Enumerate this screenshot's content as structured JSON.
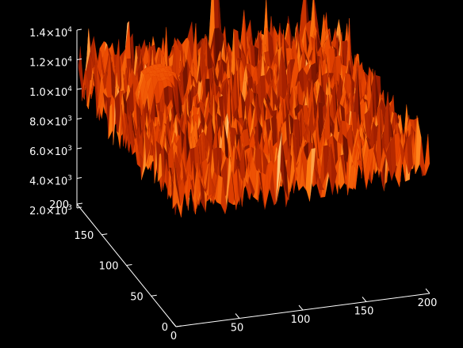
{
  "chart_data": {
    "type": "surface",
    "title": "",
    "xlabel": "",
    "ylabel": "",
    "zlabel": "",
    "x_range": [
      0,
      200
    ],
    "y_range": [
      0,
      200
    ],
    "z_range": [
      2000,
      14000
    ],
    "x_ticks": [
      "0",
      "50",
      "100",
      "150",
      "200"
    ],
    "y_ticks": [
      "0",
      "50",
      "100",
      "150",
      "200"
    ],
    "z_ticks": [
      {
        "mantissa": "2.0",
        "times": "×",
        "base": "10",
        "exponent": "3"
      },
      {
        "mantissa": "4.0",
        "times": "×",
        "base": "10",
        "exponent": "3"
      },
      {
        "mantissa": "6.0",
        "times": "×",
        "base": "10",
        "exponent": "3"
      },
      {
        "mantissa": "8.0",
        "times": "×",
        "base": "10",
        "exponent": "3"
      },
      {
        "mantissa": "1.0",
        "times": "×",
        "base": "10",
        "exponent": "4"
      },
      {
        "mantissa": "1.2",
        "times": "×",
        "base": "10",
        "exponent": "4"
      },
      {
        "mantissa": "1.4",
        "times": "×",
        "base": "10",
        "exponent": "4"
      }
    ],
    "noise_floor": {
      "mean": 6500,
      "amplitude": 2000
    },
    "features": [
      {
        "type": "plateau",
        "x": 35,
        "y": 125,
        "height": 9200,
        "radius": 18
      },
      {
        "type": "spike",
        "x": 105,
        "y": 190,
        "height": 13500,
        "radius": 4
      },
      {
        "type": "spike",
        "x": 120,
        "y": 170,
        "height": 10500,
        "radius": 4
      },
      {
        "type": "spike",
        "x": 155,
        "y": 185,
        "height": 12000,
        "radius": 2.5
      },
      {
        "type": "spike",
        "x": 140,
        "y": 175,
        "height": 11000,
        "radius": 2.5
      },
      {
        "type": "spike",
        "x": 90,
        "y": 175,
        "height": 11000,
        "radius": 2
      }
    ],
    "grid": false,
    "colormap": [
      "#5a0c00",
      "#a52000",
      "#e84400",
      "#ff7a10",
      "#ffc070"
    ]
  }
}
